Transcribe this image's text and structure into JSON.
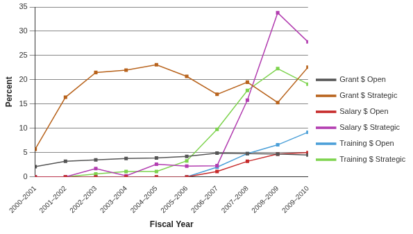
{
  "chart_data": {
    "type": "line",
    "x_label": "Fiscal Year",
    "y_label": "Percent",
    "categories": [
      "2000–2001",
      "2001–2002",
      "2002–2003",
      "2003–2004",
      "2004–2005",
      "2005–2006",
      "2006–2007",
      "2007–2008",
      "2008–2009",
      "2009–2010"
    ],
    "series": [
      {
        "name": "Grant $ Open",
        "color": "#555555",
        "marker": "square",
        "values": [
          2.1,
          3.2,
          3.5,
          3.8,
          3.9,
          4.2,
          4.9,
          4.8,
          4.7,
          4.5
        ]
      },
      {
        "name": "Grant $ Strategic",
        "color": "#b8631c",
        "marker": "square",
        "values": [
          5.7,
          16.4,
          21.5,
          22.0,
          23.1,
          20.7,
          17.0,
          19.5,
          15.3,
          22.6
        ]
      },
      {
        "name": "Salary $ Open",
        "color": "#c62a2a",
        "marker": "square",
        "values": [
          0,
          0,
          0,
          0,
          0,
          0,
          1.1,
          3.2,
          4.7,
          5.0
        ]
      },
      {
        "name": "Salary $ Strategic",
        "color": "#b23db0",
        "marker": "square",
        "values": [
          0,
          0,
          1.7,
          0.2,
          2.6,
          2.2,
          2.3,
          15.8,
          33.8,
          27.8
        ]
      },
      {
        "name": "Training $ Open",
        "color": "#4a9fd8",
        "marker": "square",
        "values": [
          0,
          0,
          0,
          0,
          0,
          0,
          2.0,
          4.8,
          6.6,
          9.2
        ]
      },
      {
        "name": "Training $ Strategic",
        "color": "#7dd34d",
        "marker": "square",
        "values": [
          0,
          0,
          0.6,
          1.1,
          1.1,
          3.3,
          9.8,
          17.8,
          22.3,
          19.1
        ]
      }
    ],
    "ylim": [
      0,
      35
    ],
    "yticks": [
      0,
      5,
      10,
      15,
      20,
      25,
      30,
      35
    ],
    "grid": true,
    "legend": "right"
  }
}
